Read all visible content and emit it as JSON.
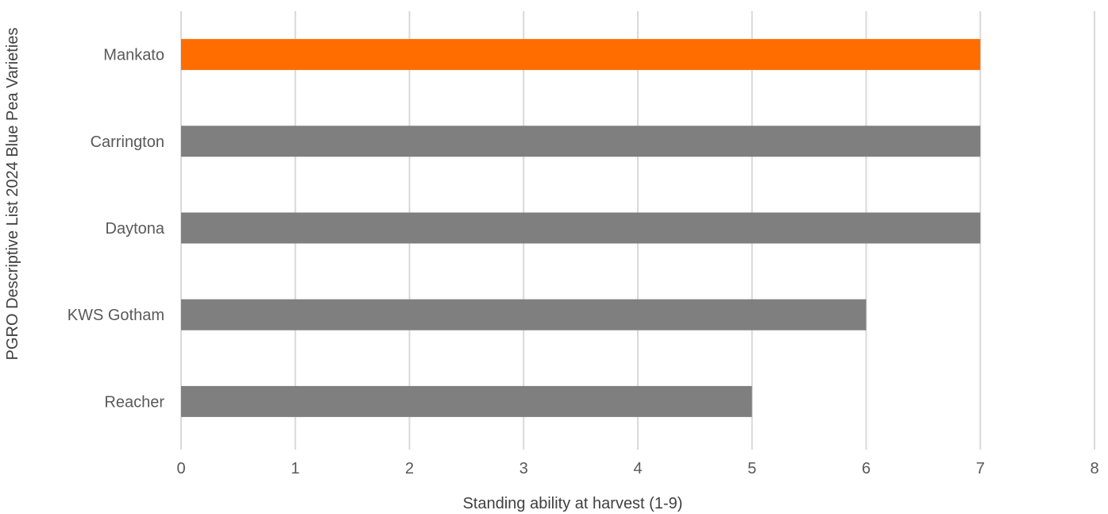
{
  "colors": {
    "highlight": "#FF6D00",
    "default_bar": "#7F7F7F",
    "gridline": "#D9D9D9",
    "text": "#595959"
  },
  "chart_data": {
    "type": "bar",
    "orientation": "horizontal",
    "categories": [
      "Mankato",
      "Carrington",
      "Daytona",
      "KWS Gotham",
      "Reacher"
    ],
    "values": [
      7,
      7,
      7,
      6,
      5
    ],
    "highlighted": [
      "Mankato"
    ],
    "title": "",
    "xlabel": "Standing ability at harvest (1-9)",
    "ylabel": "PGRO Descriptive List 2024 Blue Pea Varieties",
    "xlim": [
      0,
      8
    ],
    "xticks": [
      "0",
      "1",
      "2",
      "3",
      "4",
      "5",
      "6",
      "7",
      "8"
    ],
    "grid": "vertical",
    "legend": "none"
  }
}
